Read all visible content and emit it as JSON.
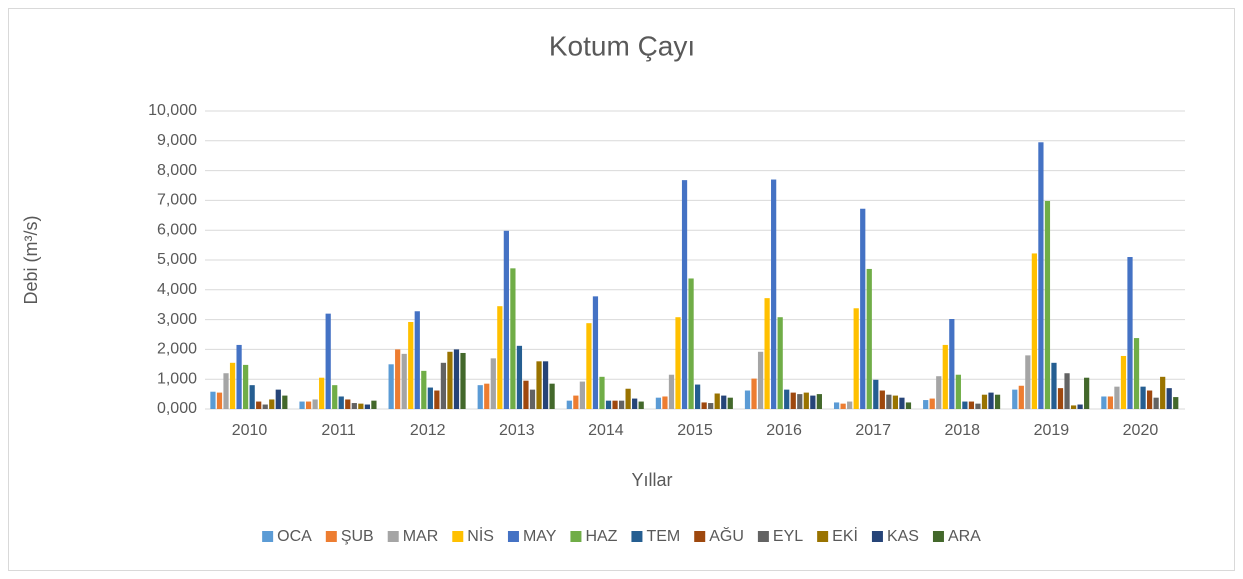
{
  "chart_data": {
    "type": "bar",
    "title": "Kotum Çayı",
    "x_label": "Yıllar",
    "y_label": "Debi (m³/s)",
    "categories": [
      "2010",
      "2011",
      "2012",
      "2013",
      "2014",
      "2015",
      "2016",
      "2017",
      "2018",
      "2019",
      "2020"
    ],
    "ylim": [
      0,
      10
    ],
    "yticks": [
      {
        "value": 0,
        "label": "0,000"
      },
      {
        "value": 1,
        "label": "1,000"
      },
      {
        "value": 2,
        "label": "2,000"
      },
      {
        "value": 3,
        "label": "3,000"
      },
      {
        "value": 4,
        "label": "4,000"
      },
      {
        "value": 5,
        "label": "5,000"
      },
      {
        "value": 6,
        "label": "6,000"
      },
      {
        "value": 7,
        "label": "7,000"
      },
      {
        "value": 8,
        "label": "8,000"
      },
      {
        "value": 9,
        "label": "9,000"
      },
      {
        "value": 10,
        "label": "10,000"
      }
    ],
    "grid": true,
    "legend": "bottom",
    "series": [
      {
        "name": "OCA",
        "color": "#5b9bd5",
        "values": [
          0.58,
          0.25,
          1.5,
          0.8,
          0.28,
          0.38,
          0.62,
          0.22,
          0.3,
          0.65,
          0.42
        ]
      },
      {
        "name": "ŞUB",
        "color": "#ed7d31",
        "values": [
          0.55,
          0.25,
          2.0,
          0.85,
          0.45,
          0.42,
          1.02,
          0.18,
          0.35,
          0.78,
          0.42
        ]
      },
      {
        "name": "MAR",
        "color": "#a5a5a5",
        "values": [
          1.2,
          0.32,
          1.85,
          1.7,
          0.92,
          1.15,
          1.92,
          0.25,
          1.1,
          1.8,
          0.75
        ]
      },
      {
        "name": "NİS",
        "color": "#ffc000",
        "values": [
          1.55,
          1.05,
          2.92,
          3.45,
          2.88,
          3.08,
          3.72,
          3.38,
          2.15,
          5.22,
          1.78
        ]
      },
      {
        "name": "MAY",
        "color": "#4472c4",
        "values": [
          2.15,
          3.2,
          3.28,
          5.98,
          3.78,
          7.68,
          7.7,
          6.72,
          3.02,
          8.95,
          5.1
        ]
      },
      {
        "name": "HAZ",
        "color": "#70ad47",
        "values": [
          1.48,
          0.8,
          1.28,
          4.72,
          1.08,
          4.38,
          3.08,
          4.7,
          1.15,
          6.98,
          2.38
        ]
      },
      {
        "name": "TEM",
        "color": "#255e91",
        "values": [
          0.8,
          0.42,
          0.72,
          2.12,
          0.28,
          0.82,
          0.65,
          0.98,
          0.25,
          1.55,
          0.75
        ]
      },
      {
        "name": "AĞU",
        "color": "#9e480e",
        "values": [
          0.25,
          0.32,
          0.62,
          0.95,
          0.28,
          0.22,
          0.55,
          0.62,
          0.25,
          0.7,
          0.62
        ]
      },
      {
        "name": "EYL",
        "color": "#636363",
        "values": [
          0.15,
          0.2,
          1.55,
          0.65,
          0.28,
          0.2,
          0.5,
          0.48,
          0.18,
          1.2,
          0.38
        ]
      },
      {
        "name": "EKİ",
        "color": "#997300",
        "values": [
          0.32,
          0.18,
          1.92,
          1.6,
          0.68,
          0.52,
          0.55,
          0.45,
          0.48,
          0.12,
          1.08
        ]
      },
      {
        "name": "KAS",
        "color": "#264478",
        "values": [
          0.65,
          0.15,
          2.0,
          1.6,
          0.35,
          0.45,
          0.45,
          0.38,
          0.55,
          0.15,
          0.7
        ]
      },
      {
        "name": "ARA",
        "color": "#43682b",
        "values": [
          0.45,
          0.28,
          1.88,
          0.85,
          0.25,
          0.38,
          0.5,
          0.22,
          0.48,
          1.05,
          0.4
        ]
      }
    ]
  }
}
